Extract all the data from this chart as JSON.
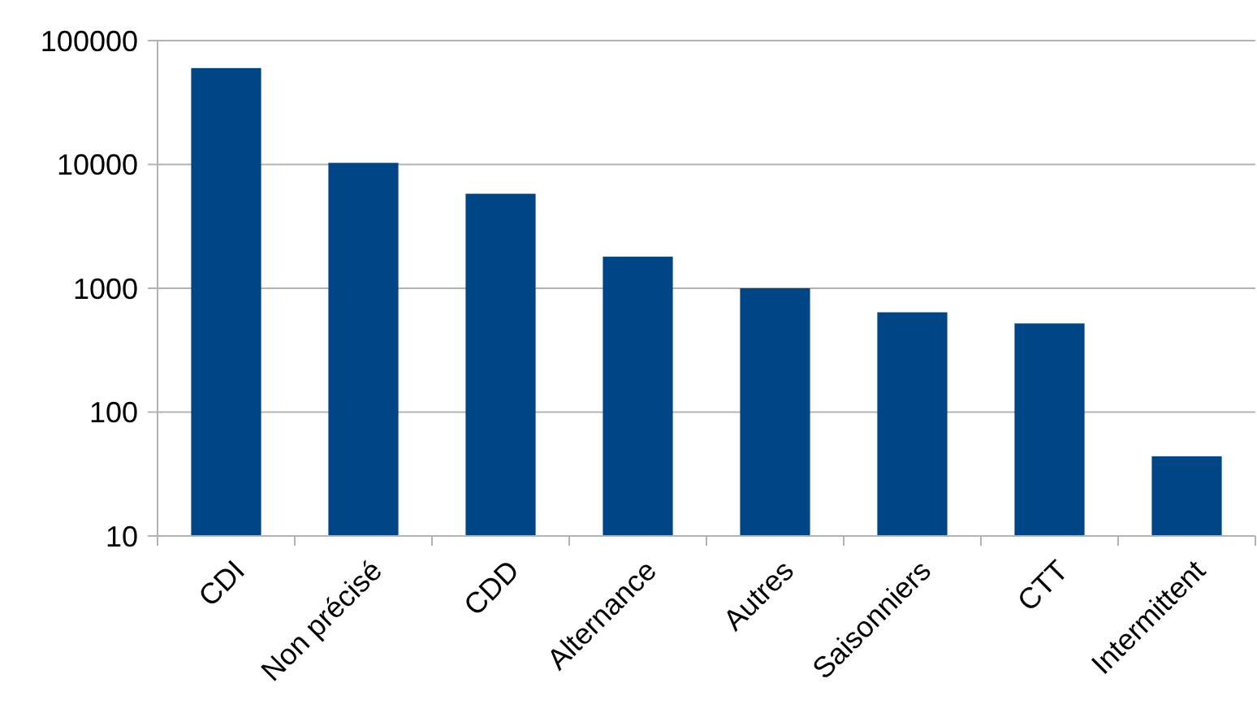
{
  "chart_data": {
    "type": "bar",
    "categories": [
      "CDI",
      "Non précisé",
      "CDD",
      "Alternance",
      "Autres",
      "Saisonniers",
      "CTT",
      "Intermittent"
    ],
    "values": [
      60000,
      10300,
      5800,
      1800,
      1000,
      640,
      520,
      44
    ],
    "color": "#004586",
    "log": true,
    "ylim": [
      10,
      100000
    ],
    "yticks": [
      10,
      100,
      1000,
      10000,
      100000
    ],
    "grid": "y"
  }
}
